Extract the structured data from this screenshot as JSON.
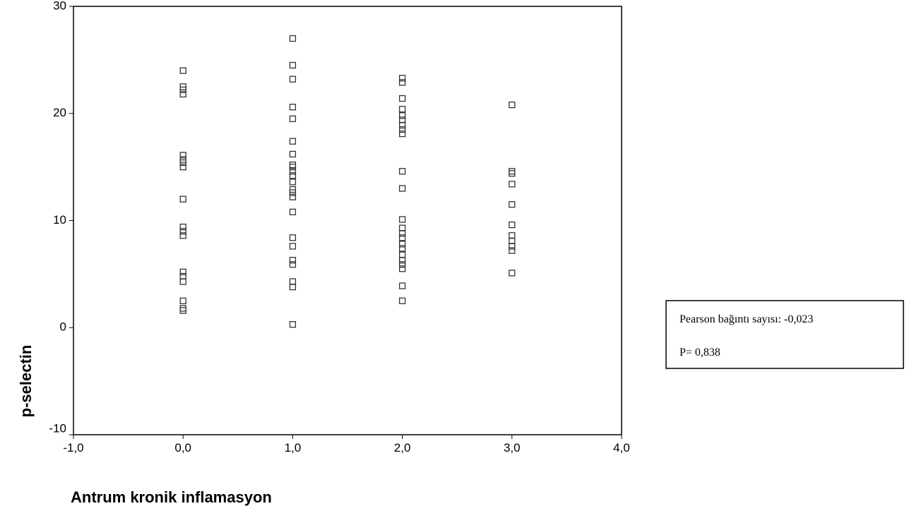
{
  "chart_data": {
    "type": "scatter",
    "x_label": "Antrum kronik inflamasyon",
    "y_label": "p-selectin",
    "xlim": [
      -1,
      4
    ],
    "xticks": [
      {
        "value": -1,
        "label": "-1,0"
      },
      {
        "value": 0,
        "label": "0,0"
      },
      {
        "value": 1,
        "label": "1,0"
      },
      {
        "value": 2,
        "label": "2,0"
      },
      {
        "value": 3,
        "label": "3,0"
      },
      {
        "value": 4,
        "label": "4,0"
      }
    ],
    "ylim": [
      -10,
      30
    ],
    "yticks": [
      -10,
      0,
      10,
      20,
      30
    ],
    "color": "#333333",
    "annotations": [
      "Pearson bağıntı sayısı:  -0,023",
      "P= 0,838"
    ],
    "x": [
      0,
      0,
      0,
      0,
      0,
      0,
      0,
      0,
      0,
      0,
      0,
      0,
      0,
      0,
      0,
      0,
      0,
      0,
      1,
      1,
      1,
      1,
      1,
      1,
      1,
      1,
      1,
      1,
      1,
      1,
      1,
      1,
      1,
      1,
      1,
      1,
      1,
      1,
      1,
      1,
      1,
      2,
      2,
      2,
      2,
      2,
      2,
      2,
      2,
      2,
      2,
      2,
      2,
      2,
      2,
      2,
      2,
      2,
      2,
      2,
      2,
      2,
      2,
      2,
      3,
      3,
      3,
      3,
      3,
      3,
      3,
      3,
      3,
      3,
      3
    ],
    "y": [
      24.0,
      22.5,
      22.2,
      21.8,
      16.1,
      15.7,
      15.4,
      15.0,
      12.0,
      9.4,
      9.0,
      8.6,
      5.2,
      4.8,
      4.3,
      2.5,
      1.8,
      1.6,
      27.0,
      24.5,
      23.2,
      20.6,
      19.5,
      17.4,
      16.2,
      15.2,
      15.0,
      14.6,
      14.2,
      13.6,
      12.9,
      12.6,
      12.2,
      10.8,
      8.4,
      7.6,
      6.3,
      5.9,
      4.3,
      3.8,
      0.3,
      23.3,
      22.9,
      21.4,
      20.4,
      19.8,
      19.4,
      18.9,
      18.5,
      18.1,
      14.6,
      13.0,
      10.1,
      9.3,
      8.8,
      8.4,
      7.8,
      7.4,
      6.8,
      6.3,
      5.9,
      5.5,
      3.9,
      2.5,
      20.8,
      14.6,
      14.4,
      13.4,
      11.5,
      9.6,
      8.6,
      8.1,
      7.6,
      7.2,
      5.1
    ]
  }
}
